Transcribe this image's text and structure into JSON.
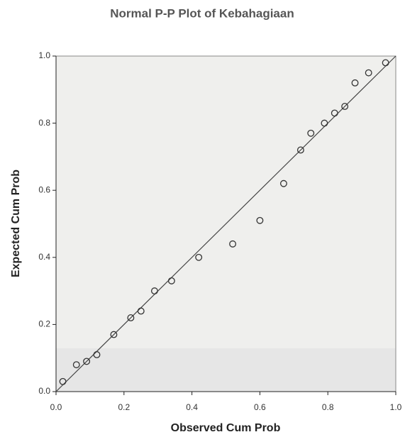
{
  "chart_data": {
    "type": "scatter",
    "title": "Normal P-P Plot of Kebahagiaan",
    "x_label": "Observed Cum Prob",
    "y_label": "Expected Cum Prob",
    "x": [
      0.02,
      0.06,
      0.09,
      0.12,
      0.17,
      0.22,
      0.25,
      0.29,
      0.34,
      0.42,
      0.52,
      0.6,
      0.67,
      0.72,
      0.75,
      0.79,
      0.82,
      0.85,
      0.88,
      0.92,
      0.97
    ],
    "values": [
      0.03,
      0.08,
      0.09,
      0.11,
      0.17,
      0.22,
      0.24,
      0.3,
      0.33,
      0.4,
      0.44,
      0.51,
      0.62,
      0.72,
      0.77,
      0.8,
      0.83,
      0.85,
      0.92,
      0.95,
      0.98
    ],
    "color": "#333333",
    "xlim": [
      0,
      1
    ],
    "ylim": [
      0,
      1
    ],
    "xticks": [
      {
        "value": 0,
        "label": "0.0"
      },
      0.2,
      0.4,
      0.6,
      0.8,
      {
        "value": 1,
        "label": "1.0"
      }
    ],
    "yticks": [
      {
        "value": 0,
        "label": "0.0"
      },
      0.2,
      0.4,
      0.6,
      0.8,
      {
        "value": 1,
        "label": "1.0"
      }
    ],
    "reference_line": true
  }
}
